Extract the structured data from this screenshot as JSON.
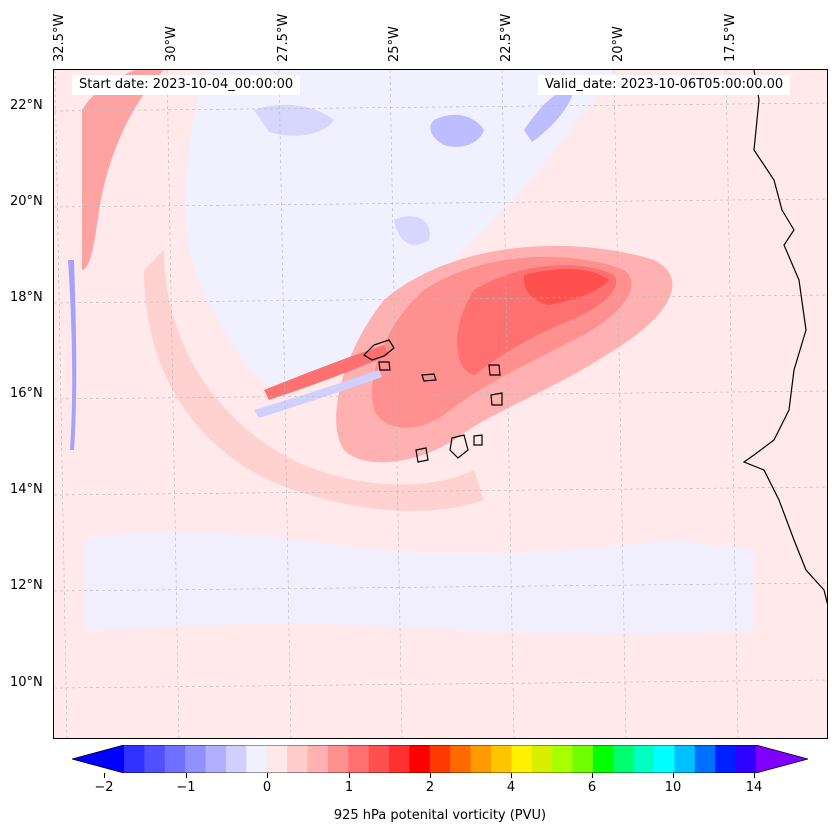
{
  "map": {
    "start_date": "Start date: 2023-10-04_00:00:00",
    "valid_date": "Valid_date: 2023-10-06T05:00:00.00",
    "lon_labels": [
      "32.5°W",
      "30°W",
      "27.5°W",
      "25°W",
      "22.5°W",
      "20°W",
      "17.5°W"
    ],
    "lat_labels": [
      "22°N",
      "20°N",
      "18°N",
      "16°N",
      "14°N",
      "12°N",
      "10°N"
    ],
    "variable": "925 hPa potential vorticity (PVU)"
  },
  "colorbar": {
    "label": "925 hPa potenital vorticity (PVU)",
    "ticks": [
      "−2",
      "−1",
      "0",
      "1",
      "2",
      "4",
      "6",
      "10",
      "14"
    ],
    "colors": [
      "#0000ff",
      "#3030ff",
      "#5050ff",
      "#7070ff",
      "#9090ff",
      "#b0b0ff",
      "#d0d0ff",
      "#f0f0ff",
      "#ffe8e8",
      "#ffcccc",
      "#ffb0b0",
      "#ff9090",
      "#ff7070",
      "#ff5050",
      "#ff3030",
      "#ff0000",
      "#ff3a00",
      "#ff6a00",
      "#ff9a00",
      "#ffc400",
      "#fff000",
      "#d8f000",
      "#a8ff00",
      "#70ff00",
      "#00ff00",
      "#00ff70",
      "#00ffc0",
      "#00ffff",
      "#00c0ff",
      "#0070ff",
      "#0020ff",
      "#3000ff",
      "#8000ff"
    ]
  }
}
